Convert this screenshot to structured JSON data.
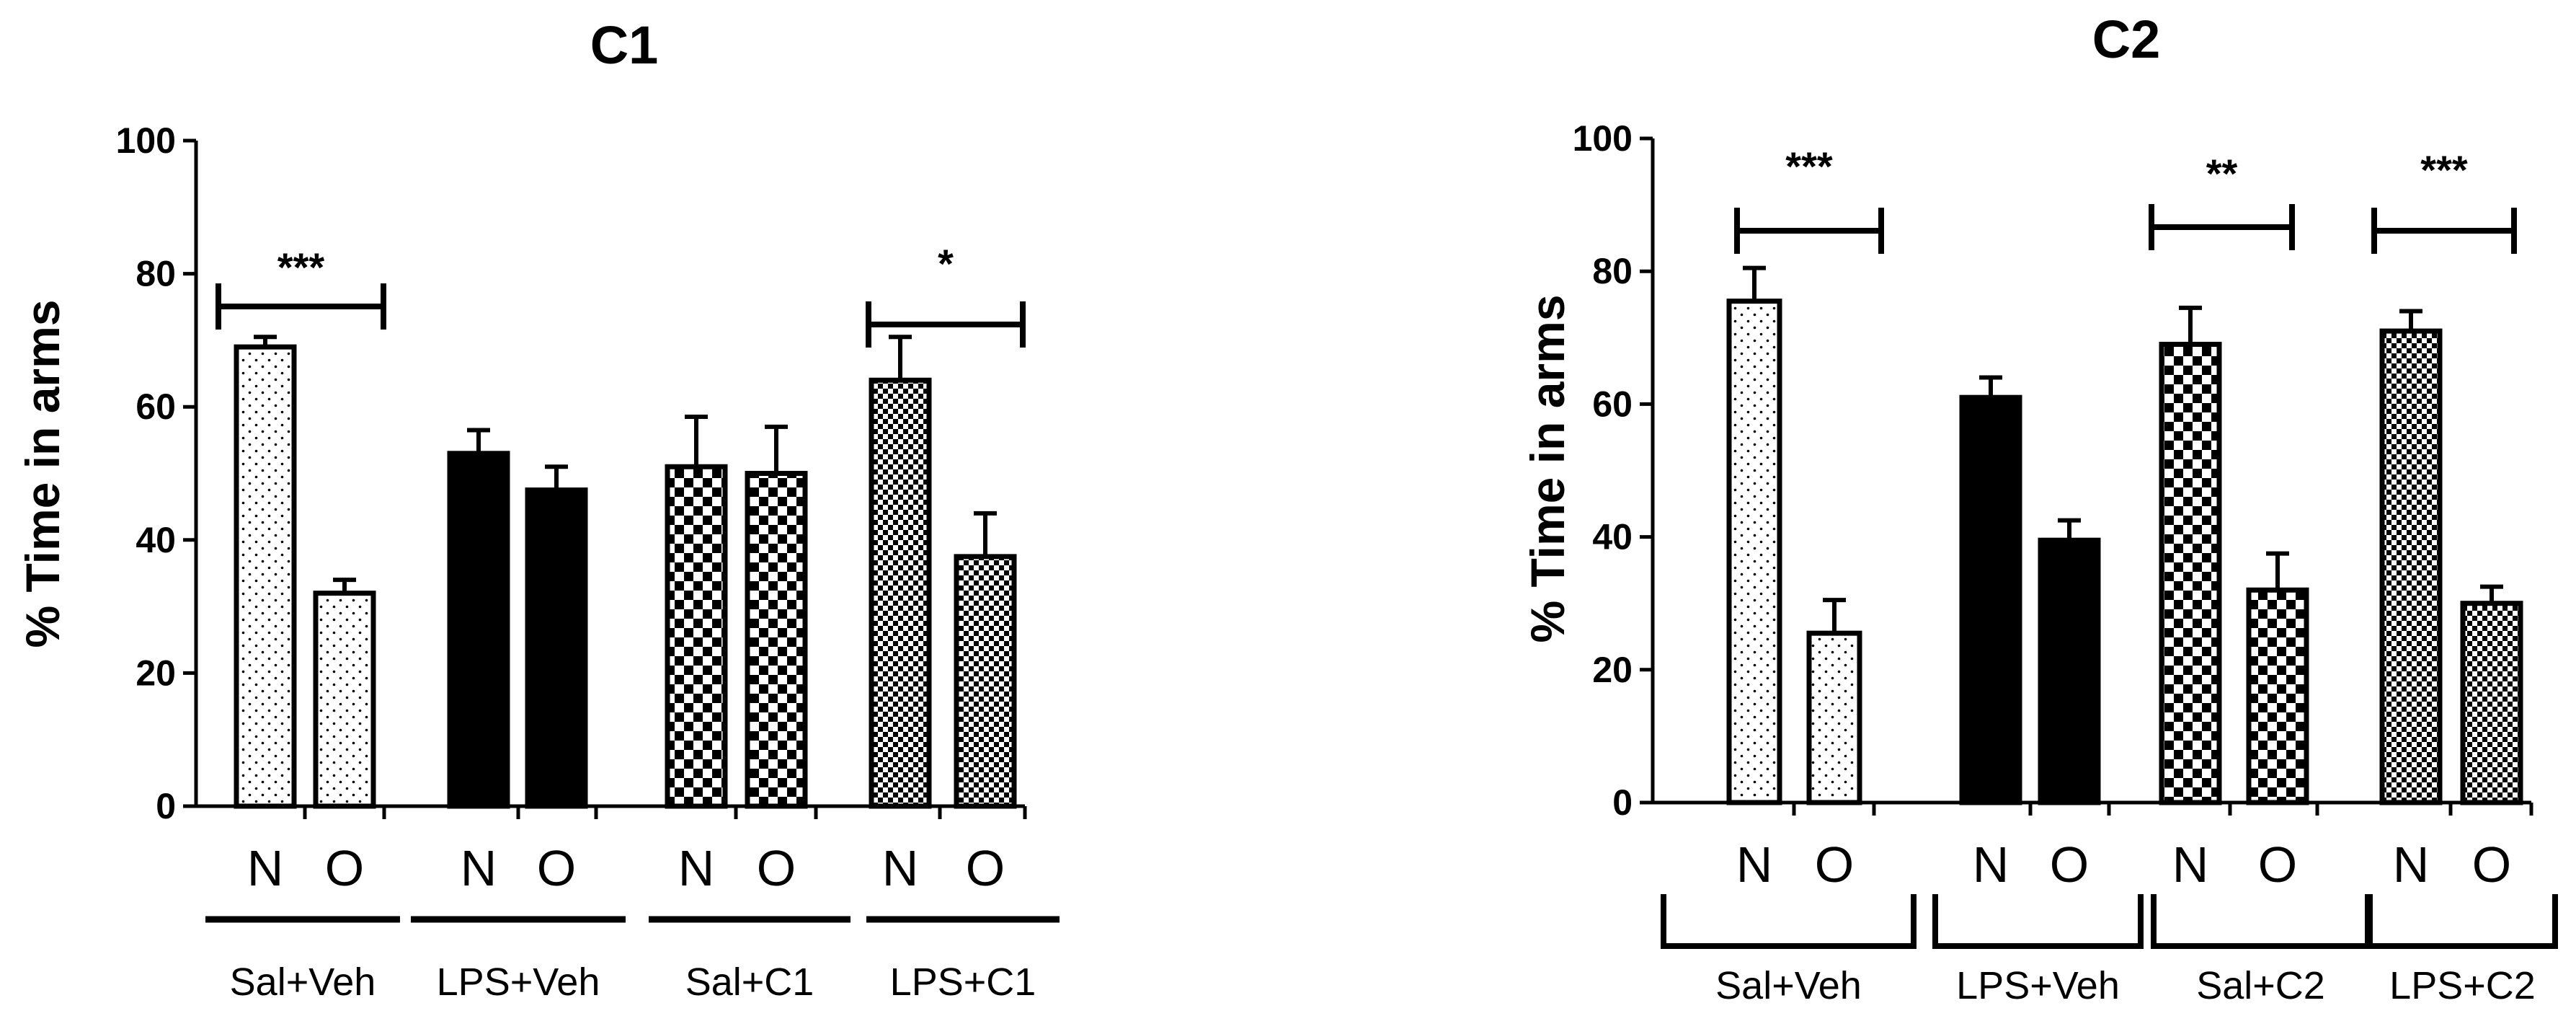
{
  "chart_data": [
    {
      "type": "bar",
      "title": "C1",
      "ylabel": "% Time in arms",
      "ylim": [
        0,
        100
      ],
      "yticks": [
        "0",
        "20",
        "40",
        "60",
        "80",
        "100"
      ],
      "groups": [
        {
          "label": "Sal+Veh",
          "pattern": "dots",
          "bars": [
            {
              "category": "N",
              "value": 69,
              "err": 1.5
            },
            {
              "category": "O",
              "value": 32,
              "err": 2
            }
          ]
        },
        {
          "label": "LPS+Veh",
          "pattern": "solid",
          "bars": [
            {
              "category": "N",
              "value": 53,
              "err": 3.5
            },
            {
              "category": "O",
              "value": 47.5,
              "err": 3.5
            }
          ]
        },
        {
          "label": "Sal+C1",
          "pattern": "checker",
          "bars": [
            {
              "category": "N",
              "value": 51,
              "err": 7.5
            },
            {
              "category": "O",
              "value": 50,
              "err": 7
            }
          ]
        },
        {
          "label": "LPS+C1",
          "pattern": "finecheck",
          "bars": [
            {
              "category": "N",
              "value": 64,
              "err": 6.5
            },
            {
              "category": "O",
              "value": 37.5,
              "err": 6.5
            }
          ]
        }
      ],
      "significance": [
        {
          "group": 0,
          "label": "***"
        },
        {
          "group": 3,
          "label": "*"
        }
      ]
    },
    {
      "type": "bar",
      "title": "C2",
      "ylabel": "% Time in arms",
      "ylim": [
        0,
        100
      ],
      "yticks": [
        "0",
        "20",
        "40",
        "60",
        "80",
        "100"
      ],
      "groups": [
        {
          "label": "Sal+Veh",
          "pattern": "dots",
          "bars": [
            {
              "category": "N",
              "value": 75.5,
              "err": 5
            },
            {
              "category": "O",
              "value": 25.5,
              "err": 5
            }
          ]
        },
        {
          "label": "LPS+Veh",
          "pattern": "solid",
          "bars": [
            {
              "category": "N",
              "value": 61,
              "err": 3
            },
            {
              "category": "O",
              "value": 39.5,
              "err": 3
            }
          ]
        },
        {
          "label": "Sal+C2",
          "pattern": "checker",
          "bars": [
            {
              "category": "N",
              "value": 69,
              "err": 5.5
            },
            {
              "category": "O",
              "value": 32,
              "err": 5.5
            }
          ]
        },
        {
          "label": "LPS+C2",
          "pattern": "finecheck",
          "bars": [
            {
              "category": "N",
              "value": 71,
              "err": 3
            },
            {
              "category": "O",
              "value": 30,
              "err": 2.5
            }
          ]
        }
      ],
      "significance": [
        {
          "group": 0,
          "label": "***"
        },
        {
          "group": 2,
          "label": "**"
        },
        {
          "group": 3,
          "label": "***"
        }
      ]
    }
  ]
}
